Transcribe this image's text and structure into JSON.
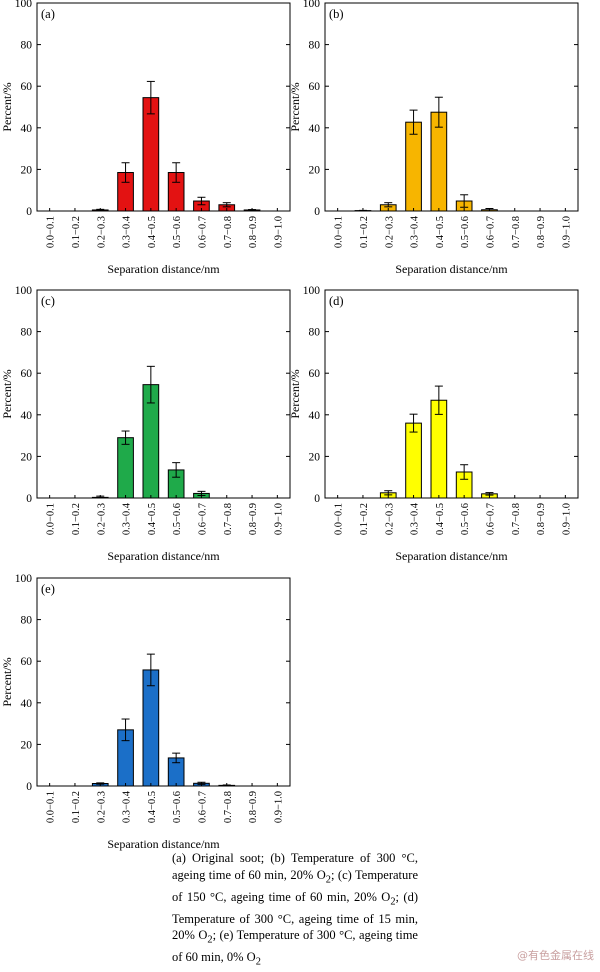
{
  "chart_data": [
    {
      "panel_label": "(a)",
      "type": "bar",
      "color": "#e31212",
      "categories": [
        "0.0−0.1",
        "0.1−0.2",
        "0.2−0.3",
        "0.3−0.4",
        "0.4−0.5",
        "0.5−0.6",
        "0.6−0.7",
        "0.7−0.8",
        "0.8−0.9",
        "0.9−1.0"
      ],
      "values": [
        0,
        0,
        0.5,
        18.5,
        54.5,
        18.5,
        4.8,
        3.0,
        0.5,
        0
      ],
      "errors": [
        0,
        0,
        0.3,
        4.7,
        7.8,
        4.7,
        1.8,
        1.0,
        0.2,
        0
      ],
      "ylabel": "Percent/%",
      "xlabel": "Separation distance/nm",
      "ylim": [
        0,
        100
      ],
      "yticks": [
        "0",
        "20",
        "40",
        "60",
        "80",
        "100"
      ]
    },
    {
      "panel_label": "(b)",
      "type": "bar",
      "color": "#f7b500",
      "categories": [
        "0.0−0.1",
        "0.1−0.2",
        "0.2−0.3",
        "0.3−0.4",
        "0.4−0.5",
        "0.5−0.6",
        "0.6−0.7",
        "0.7−0.8",
        "0.8−0.9",
        "0.9−1.0"
      ],
      "values": [
        0,
        0.2,
        3.0,
        42.7,
        47.5,
        4.8,
        0.6,
        0,
        0,
        0
      ],
      "errors": [
        0,
        0.1,
        1.0,
        5.8,
        7.2,
        3.0,
        0.6,
        0,
        0,
        0
      ],
      "ylabel": "Percent/%",
      "xlabel": "Separation distance/nm",
      "ylim": [
        0,
        100
      ],
      "yticks": [
        "0",
        "20",
        "40",
        "60",
        "80",
        "100"
      ]
    },
    {
      "panel_label": "(c)",
      "type": "bar",
      "color": "#1faa4a",
      "categories": [
        "0.0−0.1",
        "0.1−0.2",
        "0.2−0.3",
        "0.3−0.4",
        "0.4−0.5",
        "0.5−0.6",
        "0.6−0.7",
        "0.7−0.8",
        "0.8−0.9",
        "0.9−1.0"
      ],
      "values": [
        0,
        0,
        0.3,
        29.0,
        54.5,
        13.5,
        2.2,
        0,
        0,
        0
      ],
      "errors": [
        0,
        0,
        0.6,
        3.2,
        8.8,
        3.5,
        1.0,
        0,
        0,
        0
      ],
      "ylabel": "Percent/%",
      "xlabel": "Separation distance/nm",
      "ylim": [
        0,
        100
      ],
      "yticks": [
        "0",
        "20",
        "40",
        "60",
        "80",
        "100"
      ]
    },
    {
      "panel_label": "(d)",
      "type": "bar",
      "color": "#ffff00",
      "categories": [
        "0.0−0.1",
        "0.1−0.2",
        "0.2−0.3",
        "0.3−0.4",
        "0.4−0.5",
        "0.5−0.6",
        "0.6−0.7",
        "0.7−0.8",
        "0.8−0.9",
        "0.9−1.0"
      ],
      "values": [
        0,
        0,
        2.5,
        36.0,
        47.0,
        12.5,
        2.0,
        0,
        0,
        0
      ],
      "errors": [
        0,
        0,
        1.0,
        4.3,
        6.8,
        3.5,
        0.6,
        0,
        0,
        0
      ],
      "ylabel": "Percent/%",
      "xlabel": "Separation distance/nm",
      "ylim": [
        0,
        100
      ],
      "yticks": [
        "0",
        "20",
        "40",
        "60",
        "80",
        "100"
      ]
    },
    {
      "panel_label": "(e)",
      "type": "bar",
      "color": "#1b6fc8",
      "categories": [
        "0.0−0.1",
        "0.1−0.2",
        "0.2−0.3",
        "0.3−0.4",
        "0.4−0.5",
        "0.5−0.6",
        "0.6−0.7",
        "0.7−0.8",
        "0.8−0.9",
        "0.9−1.0"
      ],
      "values": [
        0,
        0,
        1.2,
        27.0,
        55.8,
        13.5,
        1.3,
        0.3,
        0,
        0
      ],
      "errors": [
        0,
        0,
        0.3,
        5.2,
        7.6,
        2.3,
        0.5,
        0.2,
        0,
        0
      ],
      "ylabel": "Percent/%",
      "xlabel": "Separation distance/nm",
      "ylim": [
        0,
        100
      ],
      "yticks": [
        "0",
        "20",
        "40",
        "60",
        "80",
        "100"
      ]
    }
  ],
  "caption": {
    "a": "(a) Original soot; (b) Temperature of 300 °C, ageing time of 60 min, 20% O",
    "a_sub": "2",
    "a_end": ";",
    "c": " (c) Temperature of 150 °C, ageing time of 60 min, 20% O",
    "c_sub": "2",
    "c_end": ";",
    "d": " (d) Temperature of 300 °C, ageing time of 15 min, 20% O",
    "d_sub": "2",
    "d_end": ";",
    "e": " (e) Temperature of 300 °C, ageing time of 60 min, 0% O",
    "e_sub": "2"
  },
  "watermark": "@有色金属在线"
}
